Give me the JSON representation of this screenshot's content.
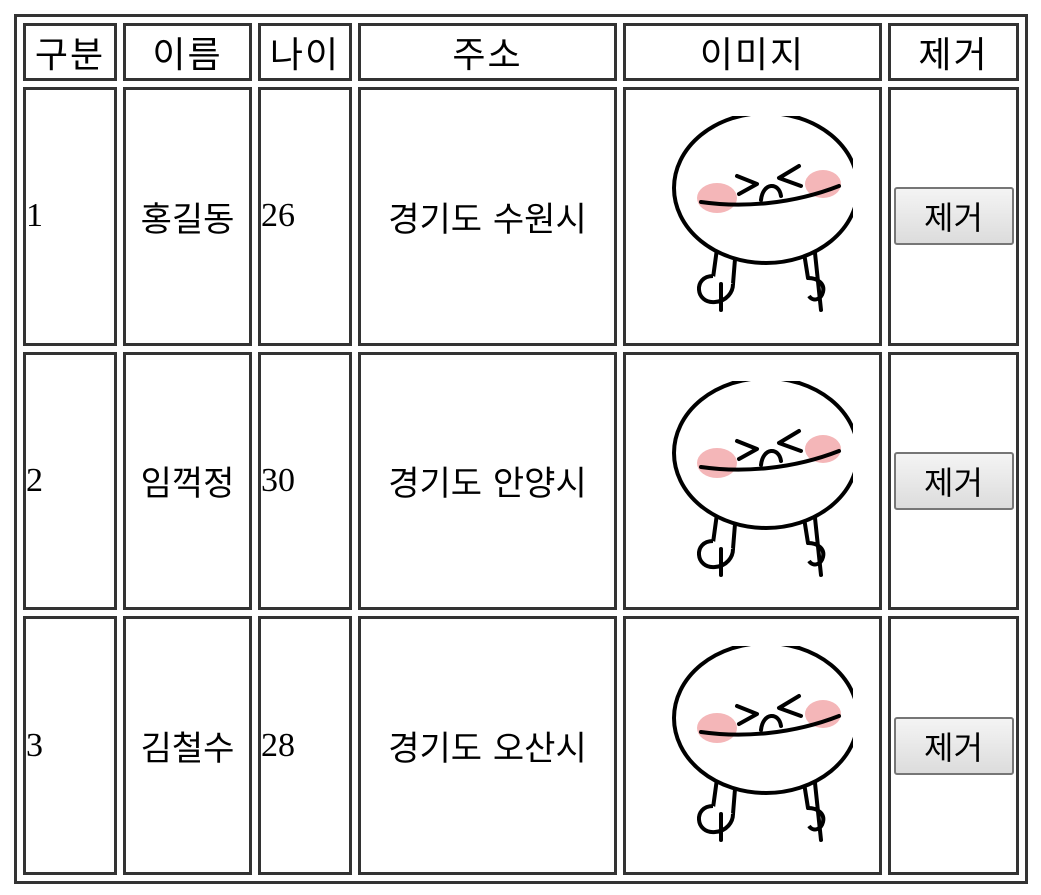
{
  "table": {
    "headers": [
      "구분",
      "이름",
      "나이",
      "주소",
      "이미지",
      "제거"
    ],
    "rows": [
      {
        "no": "1",
        "name": "홍길동",
        "age": "26",
        "address": "경기도 수원시",
        "remove_label": "제거"
      },
      {
        "no": "2",
        "name": "임꺽정",
        "age": "30",
        "address": "경기도 안양시",
        "remove_label": "제거"
      },
      {
        "no": "3",
        "name": "김철수",
        "age": "28",
        "address": "경기도 오산시",
        "remove_label": "제거"
      }
    ]
  },
  "image_icon": "laughing-character-image",
  "colors": {
    "border": "#333333",
    "cheek": "#f4b6b8",
    "button_border": "#767676"
  }
}
